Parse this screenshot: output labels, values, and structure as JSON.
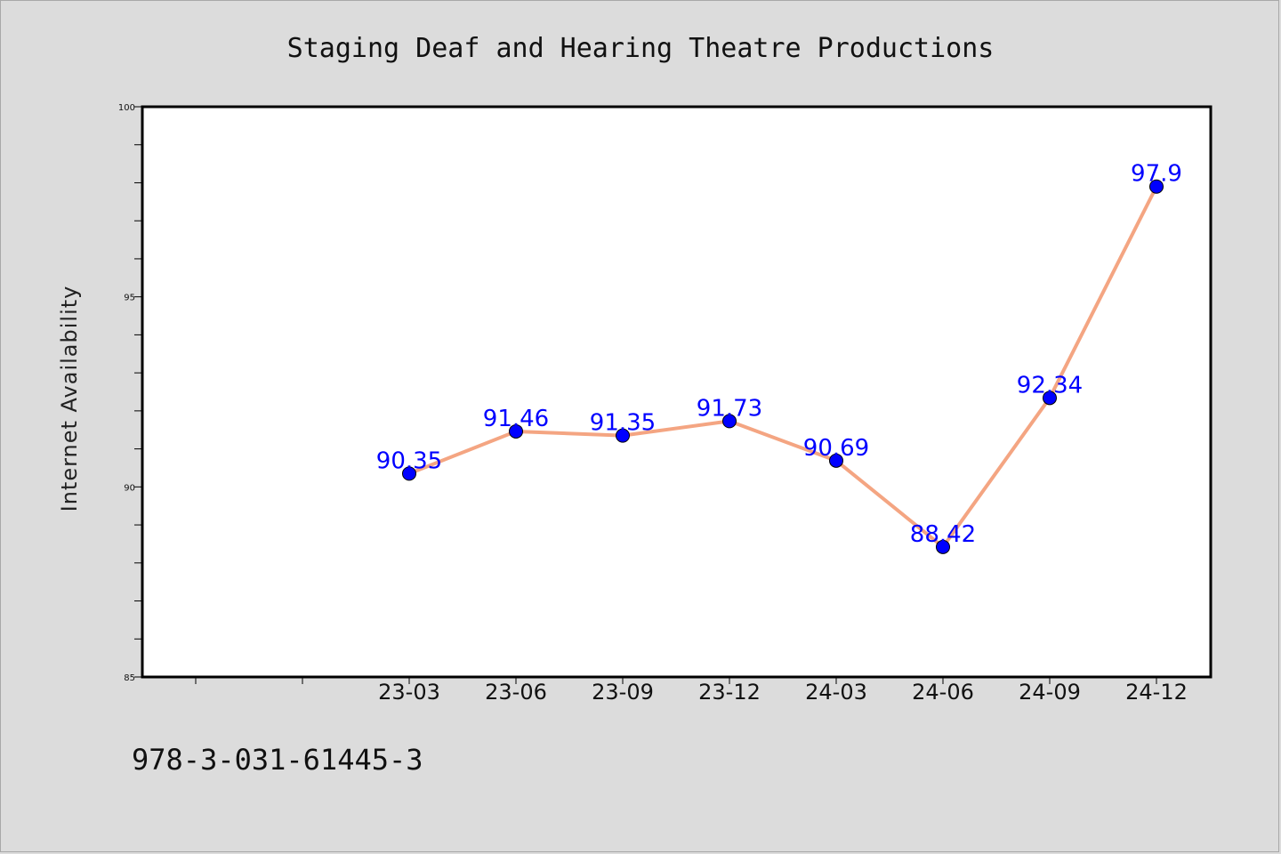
{
  "chart_data": {
    "type": "line",
    "title": "Staging Deaf and Hearing Theatre Productions",
    "xlabel": "",
    "ylabel": "Internet Availability",
    "categories": [
      "23-03",
      "23-06",
      "23-09",
      "23-12",
      "24-03",
      "24-06",
      "24-09",
      "24-12"
    ],
    "values": [
      90.35,
      91.46,
      91.35,
      91.73,
      90.69,
      88.42,
      92.34,
      97.9
    ],
    "data_labels": [
      "90.35",
      "91.46",
      "91.35",
      "91.73",
      "90.69",
      "88.42",
      "92.34",
      "97.9"
    ],
    "ylim": [
      85,
      100
    ],
    "yticks": [
      85,
      90,
      95,
      100
    ],
    "grid": false,
    "colors": {
      "line": "#f4a582",
      "marker": "#0000ff",
      "label": "#0000ff",
      "background": "#dcdcdc",
      "plot_bg": "#ffffff"
    }
  },
  "footnote": "978-3-031-61445-3"
}
